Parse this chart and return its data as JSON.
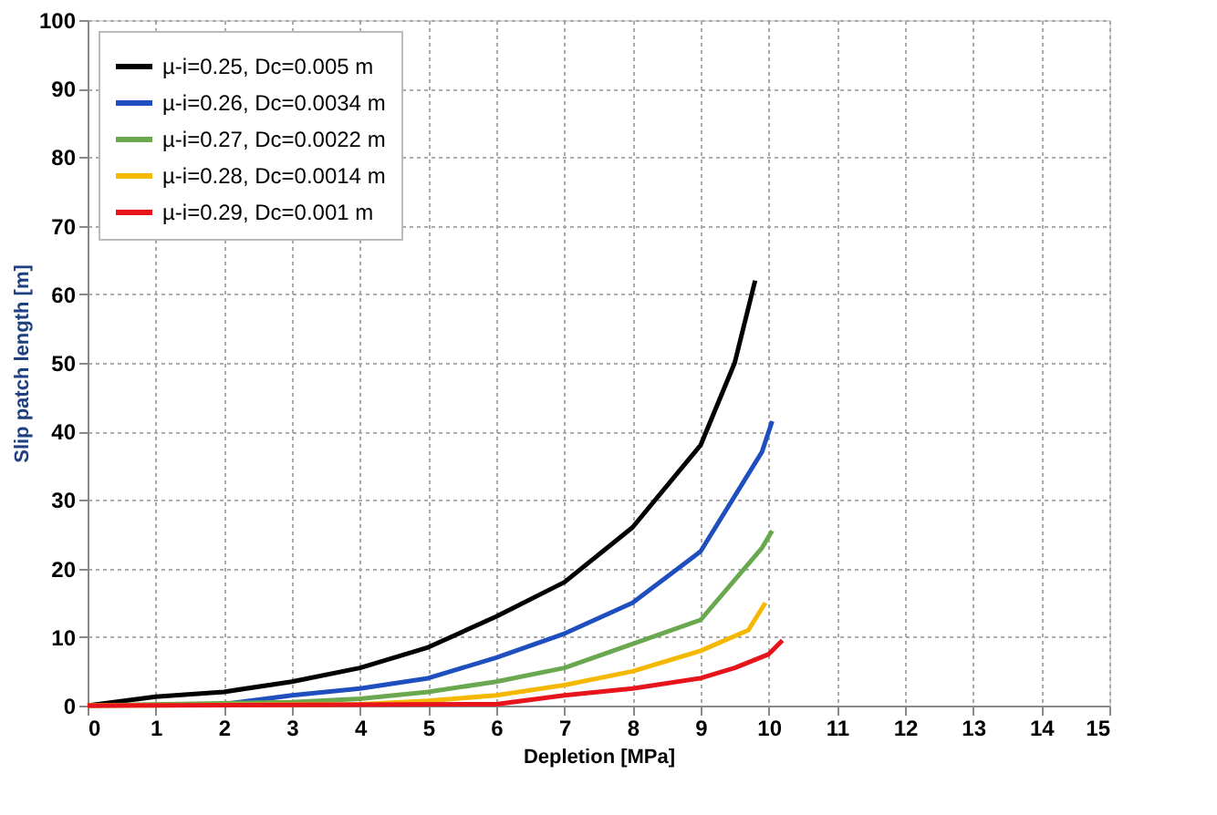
{
  "chart_data": {
    "type": "line",
    "xlabel": "Depletion [MPa]",
    "ylabel": "Slip patch length [m]",
    "xlim": [
      0,
      15
    ],
    "xticks": [
      0,
      1,
      2,
      3,
      4,
      5,
      6,
      7,
      8,
      9,
      10,
      11,
      12,
      13,
      14,
      15
    ],
    "ylim": [
      0,
      100
    ],
    "yticks": [
      0,
      10,
      20,
      30,
      40,
      50,
      60,
      70,
      80,
      90,
      100
    ],
    "grid": true,
    "legend": "top left",
    "marker": "none",
    "line_style": "solid",
    "series": [
      {
        "name": "µ-i=0.25, Dc=0.005 m",
        "color": "#000000",
        "x": [
          0,
          1,
          2,
          3,
          4,
          5,
          6,
          7,
          8,
          9,
          9.5,
          9.8
        ],
        "values": [
          0,
          1.3,
          2,
          3.5,
          5.5,
          8.5,
          13,
          18,
          26,
          38,
          50,
          62
        ]
      },
      {
        "name": "µ-i=0.26, Dc=0.0034 m",
        "color": "#1f4fbf",
        "x": [
          0,
          2,
          3,
          4,
          5,
          6,
          7,
          8,
          9,
          9.9,
          10.05
        ],
        "values": [
          0,
          0.2,
          1.5,
          2.5,
          4,
          7,
          10.5,
          15,
          22.5,
          37,
          41.5
        ]
      },
      {
        "name": "µ-i=0.27, Dc=0.0022 m",
        "color": "#6aa84f",
        "x": [
          0,
          3,
          4,
          5,
          6,
          7,
          8,
          9,
          9.9,
          10.05
        ],
        "values": [
          0,
          0.5,
          1,
          2,
          3.5,
          5.5,
          9,
          12.5,
          23,
          25.5
        ]
      },
      {
        "name": "µ-i=0.28, Dc=0.0014 m",
        "color": "#f5b800",
        "x": [
          0,
          4,
          5,
          6,
          7,
          8,
          9,
          9.7,
          9.95
        ],
        "values": [
          0,
          0.2,
          0.7,
          1.5,
          3,
          5,
          8,
          11,
          15
        ]
      },
      {
        "name": "µ-i=0.29, Dc=0.001 m",
        "color": "#e8141c",
        "x": [
          0,
          6,
          7,
          8,
          9,
          9.5,
          10,
          10.2
        ],
        "values": [
          0,
          0.2,
          1.5,
          2.5,
          4,
          5.5,
          7.5,
          9.5
        ]
      }
    ]
  }
}
